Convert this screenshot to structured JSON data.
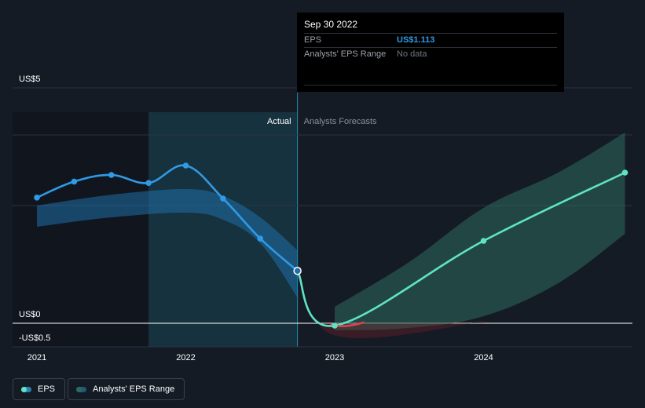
{
  "tooltip": {
    "date": "Sep 30 2022",
    "eps_label": "EPS",
    "eps_value": "US$1.113",
    "range_label": "Analysts' EPS Range",
    "range_value": "No data"
  },
  "labels": {
    "actual": "Actual",
    "forecast": "Analysts Forecasts"
  },
  "legend": {
    "eps": "EPS",
    "range": "Analysts' EPS Range"
  },
  "colors": {
    "background": "#151b24",
    "eps_actual": "#2f9ae6",
    "eps_forecast": "#5fe3c5",
    "forecast_range": "#2e6a5f",
    "negative": "#e0434d",
    "past_band": "#1b6f86"
  },
  "chart_data": {
    "type": "line",
    "xlim": [
      2021,
      2024.95
    ],
    "ylim": [
      -0.5,
      5
    ],
    "y_ticks": [
      {
        "value": 5,
        "label": "US$5"
      },
      {
        "value": 0,
        "label": "US$0"
      },
      {
        "value": -0.5,
        "label": "-US$0.5"
      }
    ],
    "x_ticks": [
      {
        "value": 2021,
        "label": "2021"
      },
      {
        "value": 2022,
        "label": "2022"
      },
      {
        "value": 2023,
        "label": "2023"
      },
      {
        "value": 2024,
        "label": "2024"
      }
    ],
    "gridlines": [
      5,
      4,
      2.5,
      0,
      -0.5
    ],
    "highlight_range": [
      2021.75,
      2022.75
    ],
    "series": [
      {
        "name": "EPS",
        "kind": "actual",
        "x": [
          2021.0,
          2021.25,
          2021.5,
          2021.75,
          2022.0,
          2022.25,
          2022.5,
          2022.75
        ],
        "y": [
          2.67,
          3.01,
          3.15,
          2.98,
          3.35,
          2.65,
          1.8,
          1.113
        ]
      },
      {
        "name": "EPS",
        "kind": "forecast",
        "x": [
          2022.75,
          2023.0,
          2024.0,
          2024.95
        ],
        "y": [
          1.113,
          -0.05,
          1.75,
          3.2
        ]
      }
    ],
    "past_range": {
      "x": [
        2021.0,
        2021.5,
        2022.0,
        2022.25,
        2022.5,
        2022.75
      ],
      "upper": [
        2.5,
        2.73,
        2.85,
        2.7,
        2.25,
        1.55
      ],
      "lower": [
        2.05,
        2.25,
        2.35,
        2.2,
        1.7,
        0.55
      ]
    },
    "forecast_range": {
      "x": [
        2023.0,
        2023.5,
        2024.0,
        2024.5,
        2024.95
      ],
      "upper": [
        0.35,
        1.3,
        2.45,
        3.2,
        4.05
      ],
      "lower": [
        -0.15,
        -0.1,
        0.15,
        0.85,
        1.9
      ]
    }
  }
}
